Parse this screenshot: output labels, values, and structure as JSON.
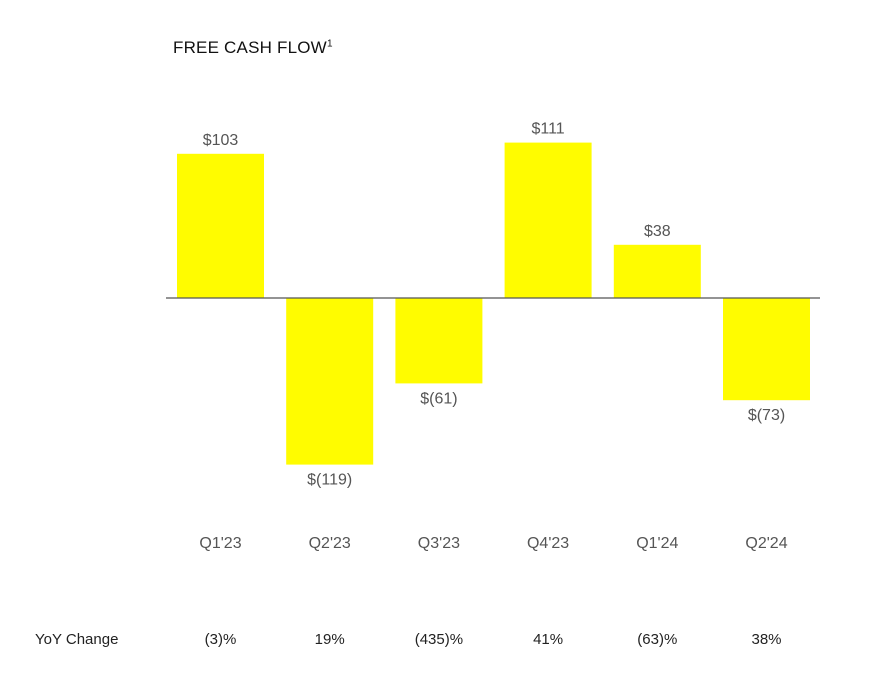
{
  "chart_data": {
    "type": "bar",
    "title": "FREE CASH FLOW",
    "title_superscript": "1",
    "categories": [
      "Q1'23",
      "Q2'23",
      "Q3'23",
      "Q4'23",
      "Q1'24",
      "Q2'24"
    ],
    "values": [
      103,
      -119,
      -61,
      111,
      38,
      -73
    ],
    "value_labels": [
      "$103",
      "$(119)",
      "$(61)",
      "$111",
      "$38",
      "$(73)"
    ],
    "bar_color": "#FFFC00",
    "axis_color": "#555555",
    "ylim": [
      -119,
      111
    ],
    "grid": false
  },
  "yoy": {
    "label": "YoY Change",
    "values": [
      "(3)%",
      "19%",
      "(435)%",
      "41%",
      "(63)%",
      "38%"
    ]
  }
}
